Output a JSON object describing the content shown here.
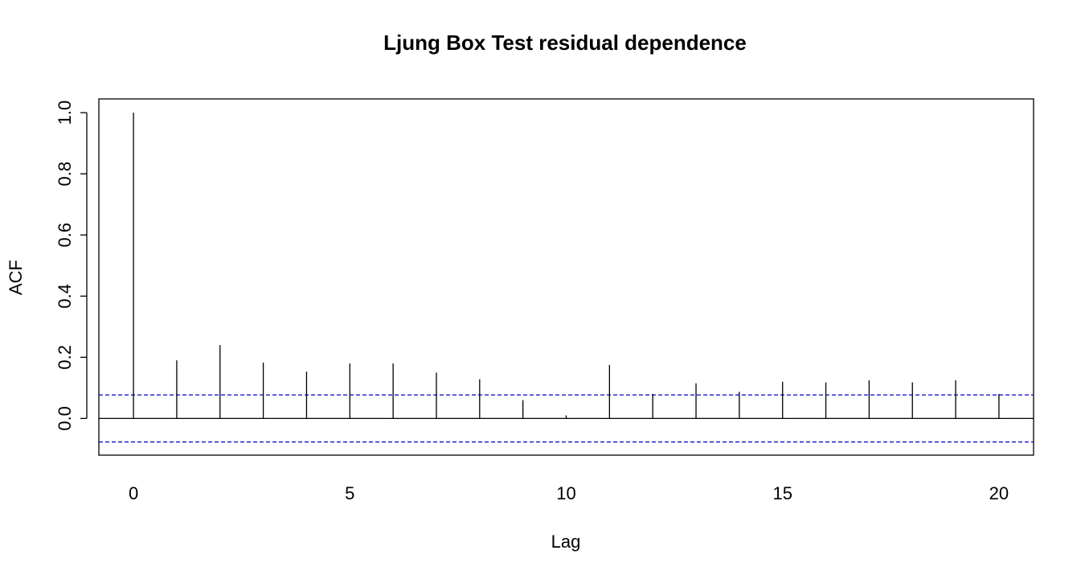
{
  "chart_data": {
    "type": "bar",
    "title": "Ljung Box Test residual dependence",
    "xlabel": "Lag",
    "ylabel": "ACF",
    "x_ticks": [
      "0",
      "5",
      "10",
      "15",
      "20"
    ],
    "y_ticks": [
      "0.0",
      "0.2",
      "0.4",
      "0.6",
      "0.8",
      "1.0"
    ],
    "xlim": [
      -0.8,
      20.8
    ],
    "ylim": [
      -0.12,
      1.045
    ],
    "series": [
      {
        "lags": [
          0,
          1,
          2,
          3,
          4,
          5,
          6,
          7,
          8,
          9,
          10,
          11,
          12,
          13,
          14,
          15,
          16,
          17,
          18,
          19,
          20
        ],
        "values": [
          1.0,
          0.19,
          0.24,
          0.183,
          0.153,
          0.18,
          0.18,
          0.15,
          0.128,
          0.06,
          0.01,
          0.175,
          0.08,
          0.115,
          0.087,
          0.12,
          0.118,
          0.125,
          0.118,
          0.125,
          0.08
        ]
      }
    ],
    "confidence_bounds": [
      0.077,
      -0.077
    ],
    "colors": {
      "bars": "#000000",
      "zero_line": "#000000",
      "confidence_lines": "#0000cc"
    },
    "grid": false
  }
}
